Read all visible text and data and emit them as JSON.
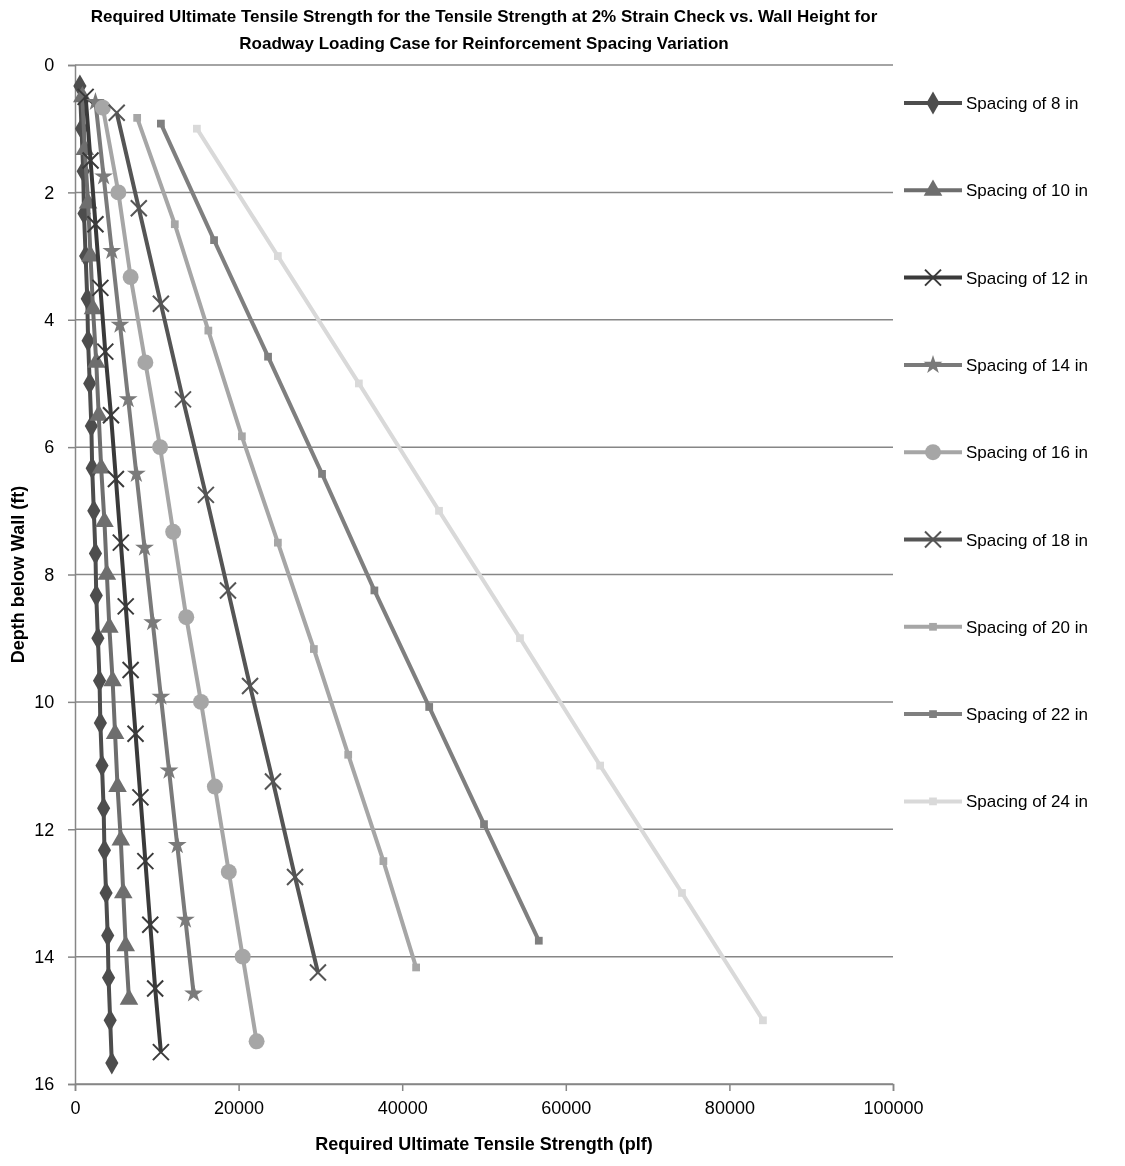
{
  "chart_data": {
    "type": "line",
    "title": "Required Ultimate Tensile Strength for the Tensile Strength at 2% Strain Check vs. Wall Height for Roadway Loading Case for Reinforcement Spacing Variation",
    "xlabel": "Required Ultimate Tensile Strength (plf)",
    "ylabel": "Depth below Wall (ft)",
    "xlim": [
      0,
      100000
    ],
    "xticks": [
      0,
      20000,
      40000,
      60000,
      80000,
      100000
    ],
    "ylim": [
      16,
      0
    ],
    "yticks": [
      0,
      2,
      4,
      6,
      8,
      10,
      12,
      14,
      16
    ],
    "grid": "y",
    "legend": "right",
    "series": [
      {
        "name": "Spacing of 8 in",
        "color": "#4d4d4d",
        "marker": "diamond",
        "x": [
          600,
          800,
          1000,
          1100,
          1300,
          1500,
          1600,
          1800,
          2000,
          2100,
          2300,
          2500,
          2600,
          2800,
          3000,
          3100,
          3300,
          3500,
          3600,
          3800,
          4000,
          4100,
          4300,
          4500
        ],
        "values": [
          0.33,
          1,
          1.67,
          2.33,
          3,
          3.67,
          4.33,
          5,
          5.67,
          6.33,
          7,
          7.67,
          8.33,
          9,
          9.67,
          10.33,
          11,
          11.67,
          12.33,
          13,
          13.67,
          14.33,
          15,
          15.67
        ]
      },
      {
        "name": "Spacing of 10 in",
        "color": "#6e6e6e",
        "marker": "triangle",
        "x": [
          900,
          1200,
          1600,
          1900,
          2200,
          2600,
          2900,
          3200,
          3600,
          3900,
          4200,
          4600,
          4900,
          5200,
          5600,
          5900,
          6200,
          6600
        ],
        "values": [
          0.5,
          1.33,
          2.17,
          3,
          3.83,
          4.67,
          5.5,
          6.33,
          7.17,
          8,
          8.83,
          9.67,
          10.5,
          11.33,
          12.17,
          13,
          13.83,
          14.67
        ]
      },
      {
        "name": "Spacing of 12 in",
        "color": "#3a3a3a",
        "marker": "cross",
        "x": [
          1300,
          1900,
          2500,
          3100,
          3700,
          4400,
          5000,
          5600,
          6200,
          6800,
          7400,
          8000,
          8600,
          9200,
          9800,
          10500
        ],
        "values": [
          0.5,
          1.5,
          2.5,
          3.5,
          4.5,
          5.5,
          6.5,
          7.5,
          8.5,
          9.5,
          10.5,
          11.5,
          12.5,
          13.5,
          14.5,
          15.5
        ]
      },
      {
        "name": "Spacing of 14 in",
        "color": "#7a7a7a",
        "marker": "star",
        "x": [
          2500,
          3500,
          4500,
          5500,
          6500,
          7500,
          8500,
          9500,
          10500,
          11500,
          12500,
          13500,
          14500
        ],
        "values": [
          0.58,
          1.75,
          2.92,
          4.08,
          5.25,
          6.42,
          7.58,
          8.75,
          9.92,
          11.08,
          12.25,
          13.42,
          14.58
        ]
      },
      {
        "name": "Spacing of 16 in",
        "color": "#a6a6a6",
        "marker": "circle",
        "x": [
          3400,
          5300,
          6800,
          8600,
          10400,
          12000,
          13600,
          15400,
          17100,
          18800,
          20500,
          22200
        ],
        "values": [
          0.67,
          2,
          3.33,
          4.67,
          6,
          7.33,
          8.67,
          10,
          11.33,
          12.67,
          14,
          15.33
        ]
      },
      {
        "name": "Spacing of 18 in",
        "color": "#555555",
        "marker": "cross",
        "x": [
          5100,
          7800,
          10500,
          13200,
          16000,
          18700,
          21400,
          24200,
          26900,
          29700
        ],
        "values": [
          0.75,
          2.25,
          3.75,
          5.25,
          6.75,
          8.25,
          9.75,
          11.25,
          12.75,
          14.25
        ]
      },
      {
        "name": "Spacing of 20 in",
        "color": "#a6a6a6",
        "marker": "square",
        "x": [
          7600,
          12200,
          16300,
          20400,
          24800,
          29200,
          33400,
          37700,
          41700
        ],
        "values": [
          0.83,
          2.5,
          4.17,
          5.83,
          7.5,
          9.17,
          10.83,
          12.5,
          14.17
        ]
      },
      {
        "name": "Spacing of 22 in",
        "color": "#7f7f7f",
        "marker": "square",
        "x": [
          10500,
          17000,
          23600,
          30200,
          36600,
          43300,
          50000,
          56700
        ],
        "values": [
          0.92,
          2.75,
          4.58,
          6.42,
          8.25,
          10.08,
          11.92,
          13.75
        ]
      },
      {
        "name": "Spacing of 24 in",
        "color": "#d9d9d9",
        "marker": "square",
        "x": [
          14900,
          24800,
          34700,
          44500,
          54400,
          64200,
          74200,
          84100
        ],
        "values": [
          1,
          3,
          5,
          7,
          9,
          11,
          13,
          15
        ]
      }
    ]
  }
}
